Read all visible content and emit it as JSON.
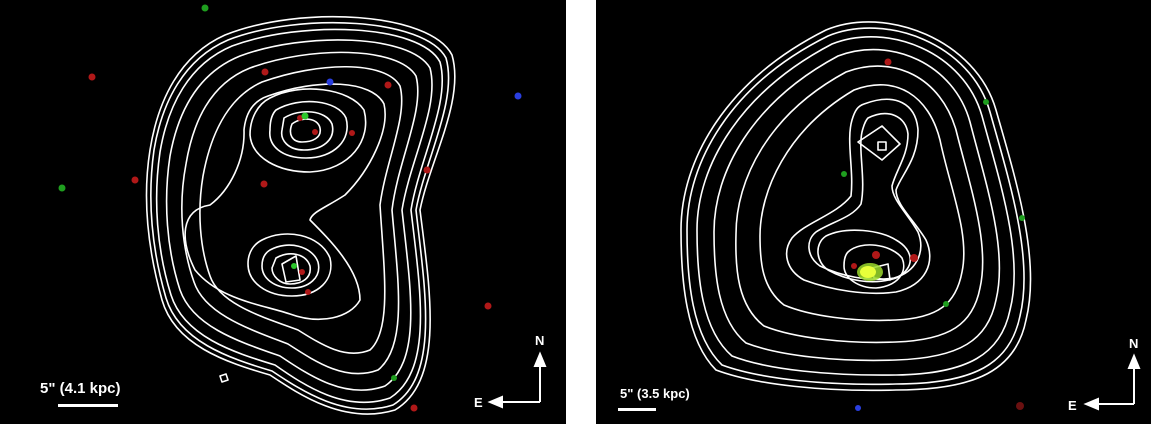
{
  "panels": [
    {
      "scale_label": "5\" (4.1 kpc)",
      "compass": {
        "north": "N",
        "east": "E"
      }
    },
    {
      "scale_label": "5\" (3.5 kpc)",
      "compass": {
        "north": "N",
        "east": "E"
      }
    }
  ],
  "colors": {
    "background": "#000000",
    "contours": "#ffffff",
    "red_photons": "#d11b1b",
    "green_photons": "#22c522",
    "blue_photons": "#2a3fe0",
    "nucleus_yellow": "#e8ff3a"
  }
}
